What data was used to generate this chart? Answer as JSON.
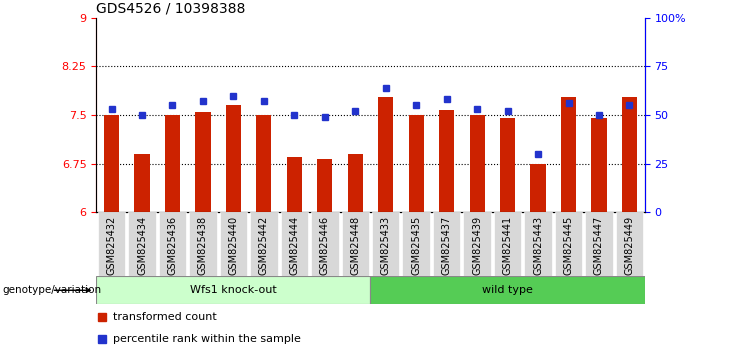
{
  "title": "GDS4526 / 10398388",
  "samples": [
    "GSM825432",
    "GSM825434",
    "GSM825436",
    "GSM825438",
    "GSM825440",
    "GSM825442",
    "GSM825444",
    "GSM825446",
    "GSM825448",
    "GSM825433",
    "GSM825435",
    "GSM825437",
    "GSM825439",
    "GSM825441",
    "GSM825443",
    "GSM825445",
    "GSM825447",
    "GSM825449"
  ],
  "red_values": [
    7.5,
    6.9,
    7.5,
    7.55,
    7.65,
    7.5,
    6.85,
    6.82,
    6.9,
    7.78,
    7.5,
    7.58,
    7.5,
    7.45,
    6.75,
    7.78,
    7.45,
    7.78
  ],
  "blue_values": [
    53,
    50,
    55,
    57,
    60,
    57,
    50,
    49,
    52,
    64,
    55,
    58,
    53,
    52,
    30,
    56,
    50,
    55
  ],
  "group1_label": "Wfs1 knock-out",
  "group2_label": "wild type",
  "group1_count": 9,
  "group2_count": 9,
  "ylim_left": [
    6,
    9
  ],
  "ylim_right": [
    0,
    100
  ],
  "yticks_left": [
    6,
    6.75,
    7.5,
    8.25,
    9
  ],
  "ytick_labels_left": [
    "6",
    "6.75",
    "7.5",
    "8.25",
    "9"
  ],
  "yticks_right": [
    0,
    25,
    50,
    75,
    100
  ],
  "ytick_labels_right": [
    "0",
    "25",
    "50",
    "75",
    "100%"
  ],
  "bar_color": "#cc2200",
  "dot_color": "#2233cc",
  "group1_bg": "#ccffcc",
  "group2_bg": "#55cc55",
  "xticklabel_bg": "#d8d8d8",
  "genotype_label": "genotype/variation",
  "legend_bar": "transformed count",
  "legend_dot": "percentile rank within the sample",
  "hline_values": [
    6.75,
    7.5,
    8.25
  ],
  "bar_width": 0.5
}
